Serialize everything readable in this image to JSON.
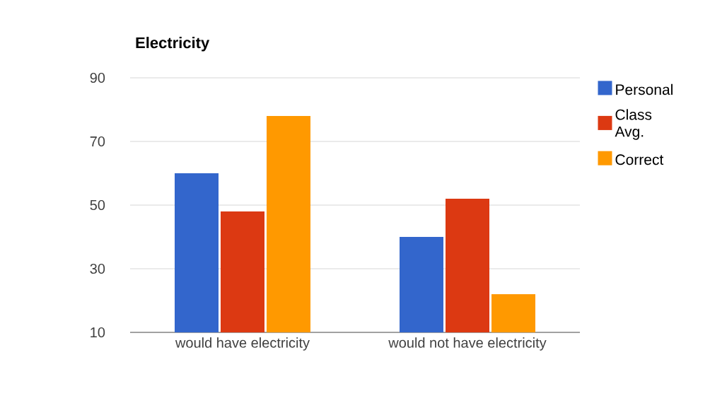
{
  "chart_data": {
    "type": "bar",
    "title": "Electricity",
    "categories": [
      "would have electricity",
      "would not have electricity"
    ],
    "series": [
      {
        "name": "Personal",
        "color": "#3366cc",
        "values": [
          60,
          40
        ]
      },
      {
        "name": "Class Avg.",
        "color": "#dc3912",
        "values": [
          48,
          52
        ]
      },
      {
        "name": "Correct",
        "color": "#ff9900",
        "values": [
          78,
          22
        ]
      }
    ],
    "ylim": [
      10,
      90
    ],
    "yticks": [
      10,
      30,
      50,
      70,
      90
    ],
    "grid": "y",
    "legend": "right"
  }
}
